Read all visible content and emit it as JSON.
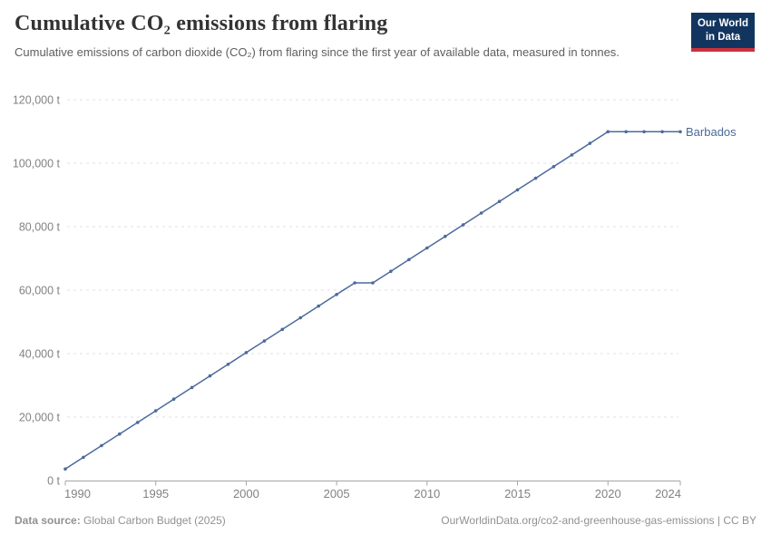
{
  "header": {
    "title": "Cumulative CO₂ emissions from flaring",
    "subtitle": "Cumulative emissions of carbon dioxide (CO₂) from flaring since the first year of available data, measured in tonnes.",
    "logo": {
      "line1": "Our World",
      "line2": "in Data"
    }
  },
  "footer": {
    "source_label": "Data source:",
    "source_text": " Global Carbon Budget (2025)",
    "attribution": "OurWorldinData.org/co2-and-greenhouse-gas-emissions | CC BY"
  },
  "colors": {
    "line": "#4C6A9C",
    "grid": "#E0E0E0",
    "axis": "#A5A5A5",
    "tick_label": "#828282",
    "logo_bg": "#12355F",
    "logo_red": "#C9313D"
  },
  "chart_data": {
    "type": "line",
    "title": "Cumulative CO₂ emissions from flaring",
    "xlabel": "",
    "ylabel": "",
    "grid": "horizontal-dashed",
    "legend": "end-of-line-label",
    "ylim": [
      0,
      120000
    ],
    "x": [
      1990,
      1991,
      1992,
      1993,
      1994,
      1995,
      1996,
      1997,
      1998,
      1999,
      2000,
      2001,
      2002,
      2003,
      2004,
      2005,
      2006,
      2007,
      2008,
      2009,
      2010,
      2011,
      2012,
      2013,
      2014,
      2015,
      2016,
      2017,
      2018,
      2019,
      2020,
      2021,
      2022,
      2023,
      2024
    ],
    "series": [
      {
        "name": "Barbados",
        "color": "#4C6A9C",
        "values": [
          3664,
          7328,
          10992,
          14656,
          18320,
          21984,
          25648,
          29312,
          32976,
          36640,
          40304,
          43968,
          47632,
          51296,
          54960,
          58624,
          62288,
          62288,
          65952,
          69616,
          73280,
          76944,
          80608,
          84272,
          87936,
          91600,
          95264,
          98928,
          102592,
          106256,
          109920,
          109920,
          109920,
          109920,
          109920
        ]
      }
    ],
    "yticks": [
      {
        "value": 0,
        "label": "0 t"
      },
      {
        "value": 20000,
        "label": "20,000 t"
      },
      {
        "value": 40000,
        "label": "40,000 t"
      },
      {
        "value": 60000,
        "label": "60,000 t"
      },
      {
        "value": 80000,
        "label": "80,000 t"
      },
      {
        "value": 100000,
        "label": "100,000 t"
      },
      {
        "value": 120000,
        "label": "120,000 t"
      }
    ],
    "xticks": [
      1990,
      1995,
      2000,
      2005,
      2010,
      2015,
      2020,
      2024
    ]
  }
}
